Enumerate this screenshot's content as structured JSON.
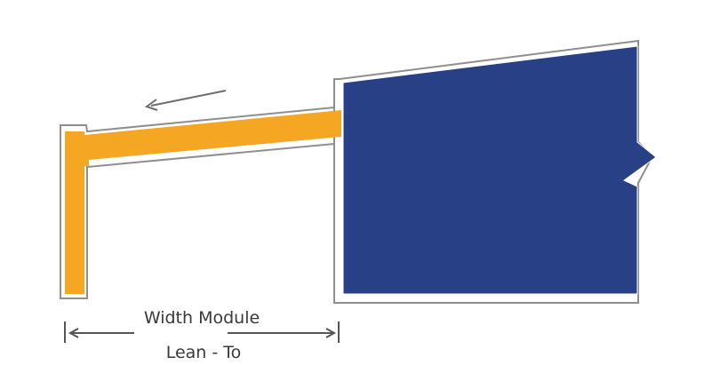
{
  "diagram": {
    "width_label": "Width Module",
    "type_label": "Lean - To",
    "colors": {
      "lean_to_frame": "#f5a623",
      "main_building": "#284085",
      "outline": "#8f8f8f",
      "dimension_line": "#555555",
      "arrow": "#6e6e6e"
    }
  }
}
